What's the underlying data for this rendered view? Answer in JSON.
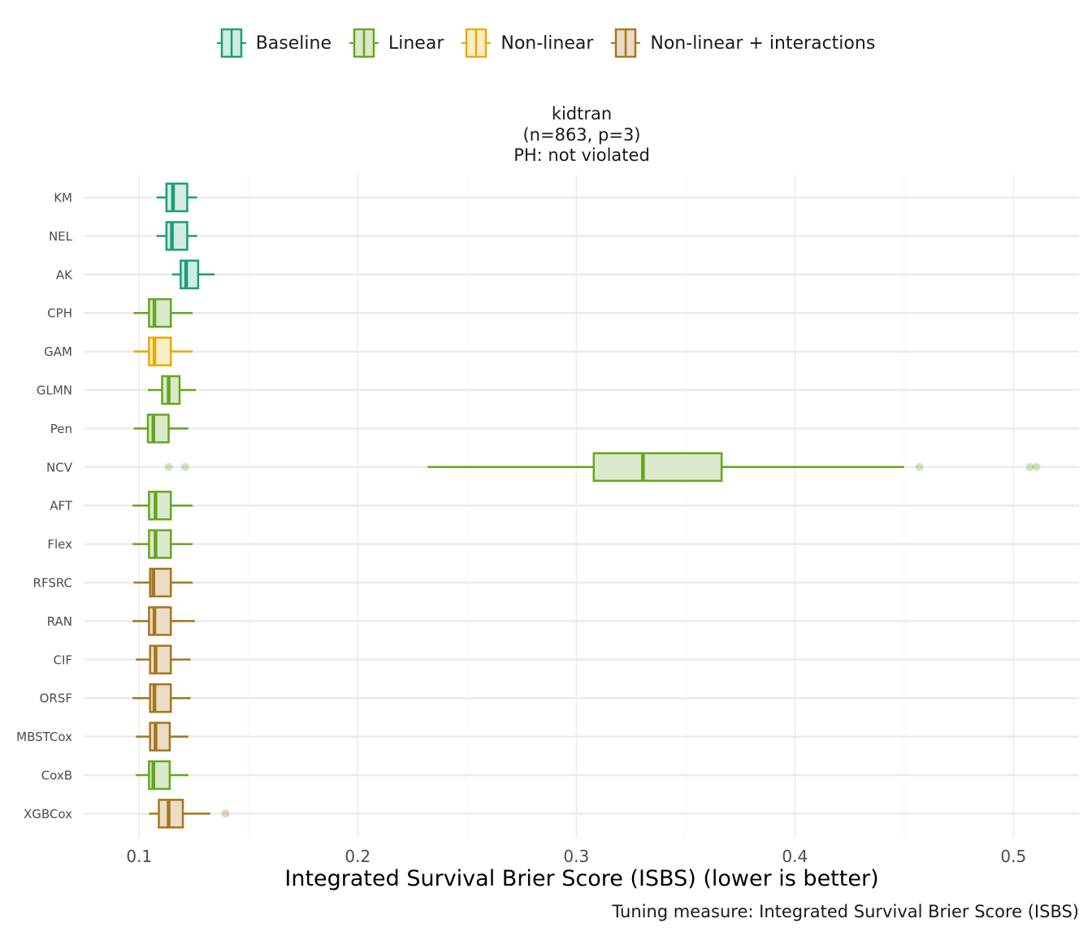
{
  "legend": {
    "title": "",
    "items": [
      {
        "label": "Baseline",
        "color": "#1b9e77",
        "fill": "#d1ece3"
      },
      {
        "label": "Linear",
        "color": "#66a61e",
        "fill": "#dae8cb"
      },
      {
        "label": "Non-linear",
        "color": "#e6ab02",
        "fill": "#fbeec7"
      },
      {
        "label": "Non-linear + interactions",
        "color": "#a6761d",
        "fill": "#ebdcc5"
      }
    ]
  },
  "facet": {
    "title_lines": [
      "kidtran",
      "(n=863, p=3)",
      "PH: not violated"
    ]
  },
  "caption": "Tuning measure: Integrated Survival Brier Score (ISBS)",
  "chart_data": {
    "type": "boxplot",
    "orientation": "horizontal",
    "title": "kidtran (n=863, p=3) PH: not violated",
    "xlabel": "Integrated Survival Brier Score (ISBS) (lower is better)",
    "ylabel": "",
    "xlim": [
      0.075,
      0.53
    ],
    "xticks": [
      0.1,
      0.2,
      0.3,
      0.4,
      0.5
    ],
    "xtick_labels": [
      "0.1",
      "0.2",
      "0.3",
      "0.4",
      "0.5"
    ],
    "grid": true,
    "legend_position": "top",
    "categories": [
      "KM",
      "NEL",
      "AK",
      "CPH",
      "GAM",
      "GLMN",
      "Pen",
      "NCV",
      "AFT",
      "Flex",
      "RFSRC",
      "RAN",
      "CIF",
      "ORSF",
      "MBSTCox",
      "CoxB",
      "XGBCox"
    ],
    "boxes": [
      {
        "label": "KM",
        "group": "Baseline",
        "min": 0.108,
        "q1": 0.1125,
        "median": 0.1155,
        "q3": 0.122,
        "max": 0.1265,
        "outliers": []
      },
      {
        "label": "NEL",
        "group": "Baseline",
        "min": 0.108,
        "q1": 0.1125,
        "median": 0.115,
        "q3": 0.122,
        "max": 0.1265,
        "outliers": []
      },
      {
        "label": "AK",
        "group": "Baseline",
        "min": 0.115,
        "q1": 0.119,
        "median": 0.1215,
        "q3": 0.127,
        "max": 0.1345,
        "outliers": []
      },
      {
        "label": "CPH",
        "group": "Linear",
        "min": 0.0975,
        "q1": 0.1045,
        "median": 0.107,
        "q3": 0.1145,
        "max": 0.1245,
        "outliers": []
      },
      {
        "label": "GAM",
        "group": "Non-linear",
        "min": 0.0975,
        "q1": 0.1045,
        "median": 0.107,
        "q3": 0.1145,
        "max": 0.1245,
        "outliers": []
      },
      {
        "label": "GLMN",
        "group": "Linear",
        "min": 0.104,
        "q1": 0.1105,
        "median": 0.1135,
        "q3": 0.1185,
        "max": 0.126,
        "outliers": []
      },
      {
        "label": "Pen",
        "group": "Linear",
        "min": 0.0975,
        "q1": 0.104,
        "median": 0.1065,
        "q3": 0.1135,
        "max": 0.1225,
        "outliers": []
      },
      {
        "label": "NCV",
        "group": "Linear",
        "min": 0.232,
        "q1": 0.308,
        "median": 0.3305,
        "q3": 0.3665,
        "max": 0.45,
        "outliers": [
          0.1135,
          0.121,
          0.457,
          0.5075,
          0.5105
        ]
      },
      {
        "label": "AFT",
        "group": "Linear",
        "min": 0.097,
        "q1": 0.1045,
        "median": 0.1075,
        "q3": 0.1145,
        "max": 0.1245,
        "outliers": []
      },
      {
        "label": "Flex",
        "group": "Linear",
        "min": 0.097,
        "q1": 0.1045,
        "median": 0.1075,
        "q3": 0.1145,
        "max": 0.1245,
        "outliers": []
      },
      {
        "label": "RFSRC",
        "group": "Non-linear + interactions",
        "min": 0.0975,
        "q1": 0.105,
        "median": 0.1065,
        "q3": 0.1145,
        "max": 0.1245,
        "outliers": []
      },
      {
        "label": "RAN",
        "group": "Non-linear + interactions",
        "min": 0.097,
        "q1": 0.1045,
        "median": 0.107,
        "q3": 0.1145,
        "max": 0.1255,
        "outliers": []
      },
      {
        "label": "CIF",
        "group": "Non-linear + interactions",
        "min": 0.0985,
        "q1": 0.105,
        "median": 0.1075,
        "q3": 0.1145,
        "max": 0.1235,
        "outliers": []
      },
      {
        "label": "ORSF",
        "group": "Non-linear + interactions",
        "min": 0.097,
        "q1": 0.105,
        "median": 0.107,
        "q3": 0.1145,
        "max": 0.1235,
        "outliers": []
      },
      {
        "label": "MBSTCox",
        "group": "Non-linear + interactions",
        "min": 0.0985,
        "q1": 0.105,
        "median": 0.1075,
        "q3": 0.114,
        "max": 0.1225,
        "outliers": []
      },
      {
        "label": "CoxB",
        "group": "Linear",
        "min": 0.0985,
        "q1": 0.1045,
        "median": 0.1065,
        "q3": 0.114,
        "max": 0.1225,
        "outliers": []
      },
      {
        "label": "XGBCox",
        "group": "Non-linear + interactions",
        "min": 0.1045,
        "q1": 0.109,
        "median": 0.1135,
        "q3": 0.12,
        "max": 0.1325,
        "outliers": [
          0.1395
        ]
      }
    ]
  }
}
